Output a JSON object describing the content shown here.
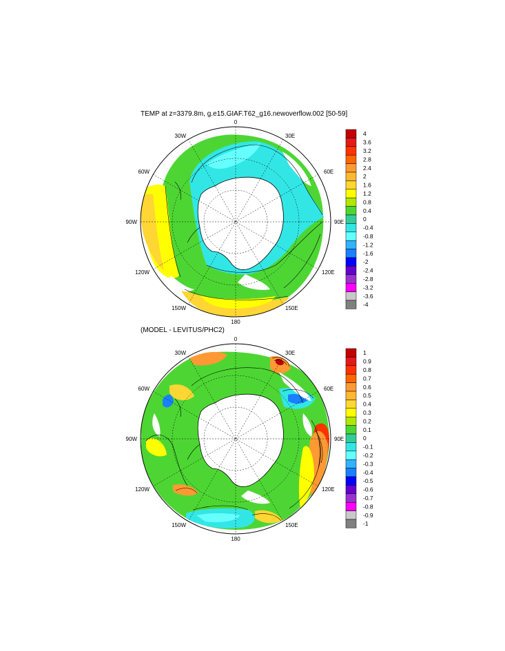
{
  "top_panel": {
    "title": "TEMP at z=3379.8m, g.e15.GIAF.T62_g16.newoverflow.002 [50-59]",
    "longitude_labels": {
      "n": "0",
      "nne": "30E",
      "ene": "60E",
      "e": "90E",
      "ese": "120E",
      "sse": "150E",
      "s": "180",
      "ssw": "150W",
      "wsw": "120W",
      "w": "90W",
      "wnw": "60W",
      "nnw": "30W"
    },
    "colorbar": {
      "labels": [
        "4",
        "3.6",
        "3.2",
        "2.8",
        "2.4",
        "2",
        "1.6",
        "1.2",
        "0.8",
        "0.4",
        "0",
        "-0.4",
        "-0.8",
        "-1.2",
        "-1.6",
        "-2",
        "-2.4",
        "-2.8",
        "-3.2",
        "-3.6",
        "-4"
      ],
      "colors": [
        "#c40000",
        "#e31a1a",
        "#ff3300",
        "#ff6600",
        "#ff9933",
        "#ffb833",
        "#ffd633",
        "#ffff00",
        "#b2e600",
        "#4dd633",
        "#33cc99",
        "#33e6e6",
        "#66ffff",
        "#33b2ff",
        "#1a80ff",
        "#0000ff",
        "#6600cc",
        "#9933cc",
        "#ff00ff",
        "#c8c8c8",
        "#808080"
      ]
    }
  },
  "bottom_panel": {
    "title": "(MODEL - LEVITUS/PHC2)",
    "longitude_labels": {
      "n": "0",
      "nne": "30E",
      "ene": "60E",
      "e": "90E",
      "ese": "120E",
      "sse": "150E",
      "s": "180",
      "ssw": "150W",
      "wsw": "120W",
      "w": "90W",
      "wnw": "60W",
      "nnw": "30W"
    },
    "colorbar": {
      "labels": [
        "1",
        "0.9",
        "0.8",
        "0.7",
        "0.6",
        "0.5",
        "0.4",
        "0.3",
        "0.2",
        "0.1",
        "0",
        "-0.1",
        "-0.2",
        "-0.3",
        "-0.4",
        "-0.5",
        "-0.6",
        "-0.7",
        "-0.8",
        "-0.9",
        "-1"
      ],
      "colors": [
        "#c40000",
        "#e31a1a",
        "#ff3300",
        "#ff6600",
        "#ff9933",
        "#ffb833",
        "#ffd633",
        "#ffff00",
        "#b2e600",
        "#4dd633",
        "#33cc99",
        "#33e6e6",
        "#66ffff",
        "#33b2ff",
        "#1a80ff",
        "#0000ff",
        "#6600cc",
        "#9933cc",
        "#ff00ff",
        "#c8c8c8",
        "#808080"
      ]
    }
  }
}
